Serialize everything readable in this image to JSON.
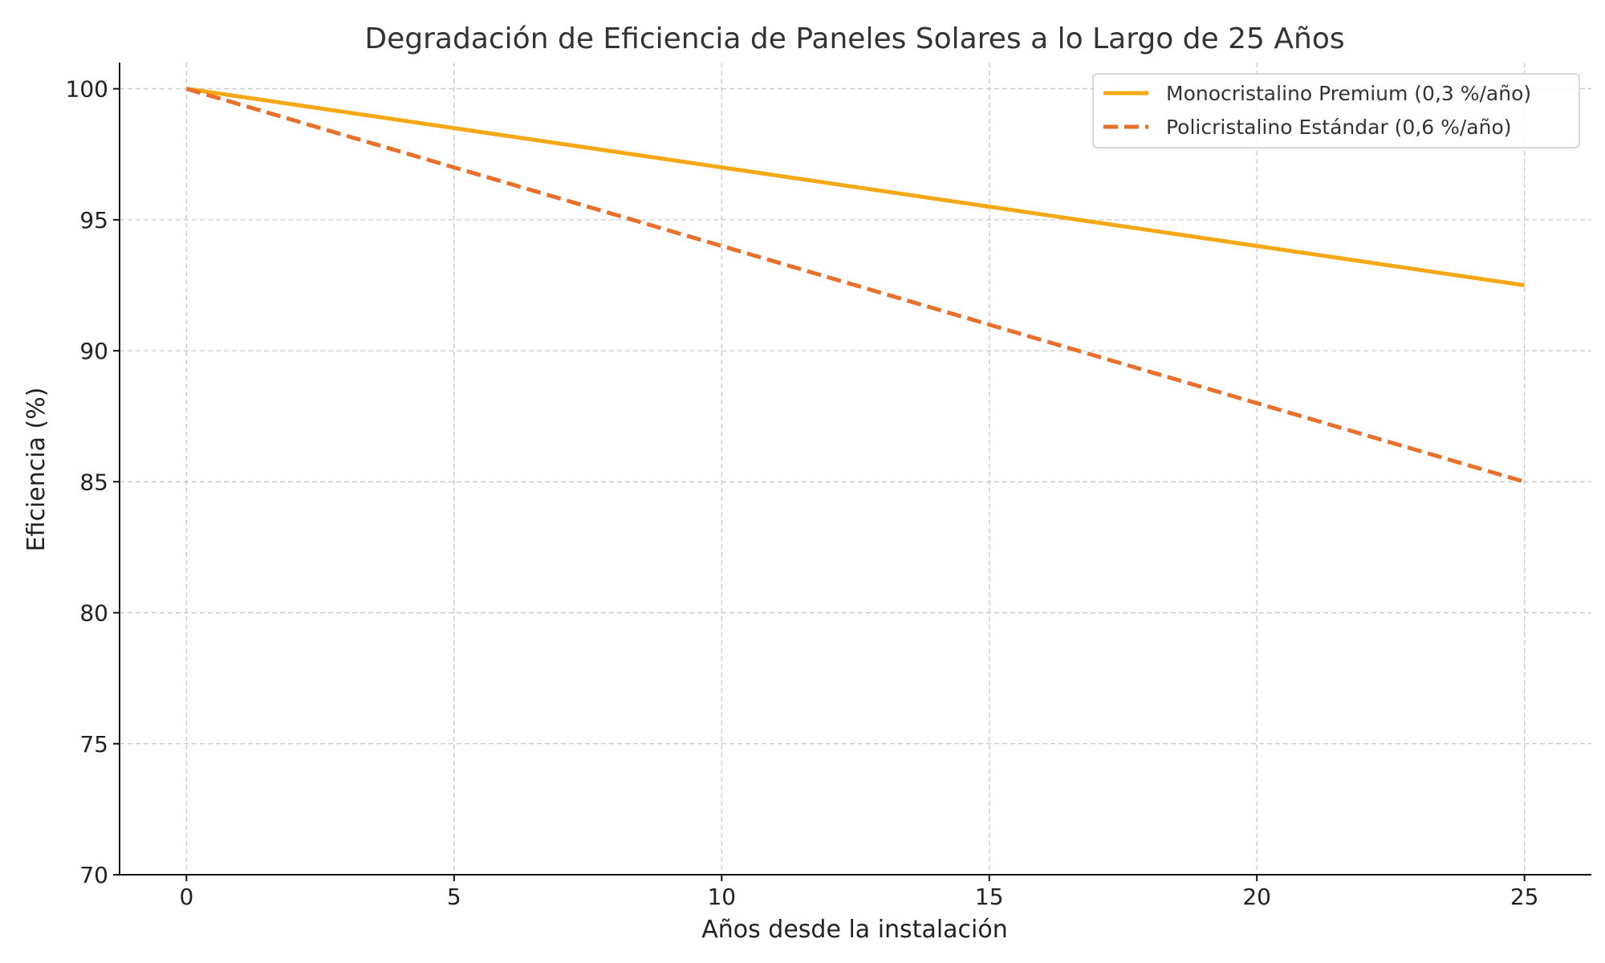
{
  "chart_data": {
    "type": "line",
    "title": "Degradación de Eficiencia de Paneles Solares a lo Largo de 25 Años",
    "xlabel": "Años desde la instalación",
    "ylabel": "Eficiencia (%)",
    "x": [
      0,
      5,
      10,
      15,
      20,
      25
    ],
    "xlim": [
      -1.25,
      26.25
    ],
    "ylim": [
      70,
      101
    ],
    "xticks": [
      0,
      5,
      10,
      15,
      20,
      25
    ],
    "yticks": [
      70,
      75,
      80,
      85,
      90,
      95,
      100
    ],
    "grid": true,
    "legend_position": "top-right",
    "series": [
      {
        "name": "Monocristalino Premium (0,3 %/año)",
        "color": "#F5A815",
        "style": "solid",
        "values": [
          100,
          98.5,
          97,
          95.5,
          94,
          92.5
        ]
      },
      {
        "name": "Policristalino Estándar (0,6 %/año)",
        "color": "#E8702A",
        "style": "dashed",
        "values": [
          100,
          97,
          94,
          91,
          88,
          85
        ]
      }
    ]
  }
}
